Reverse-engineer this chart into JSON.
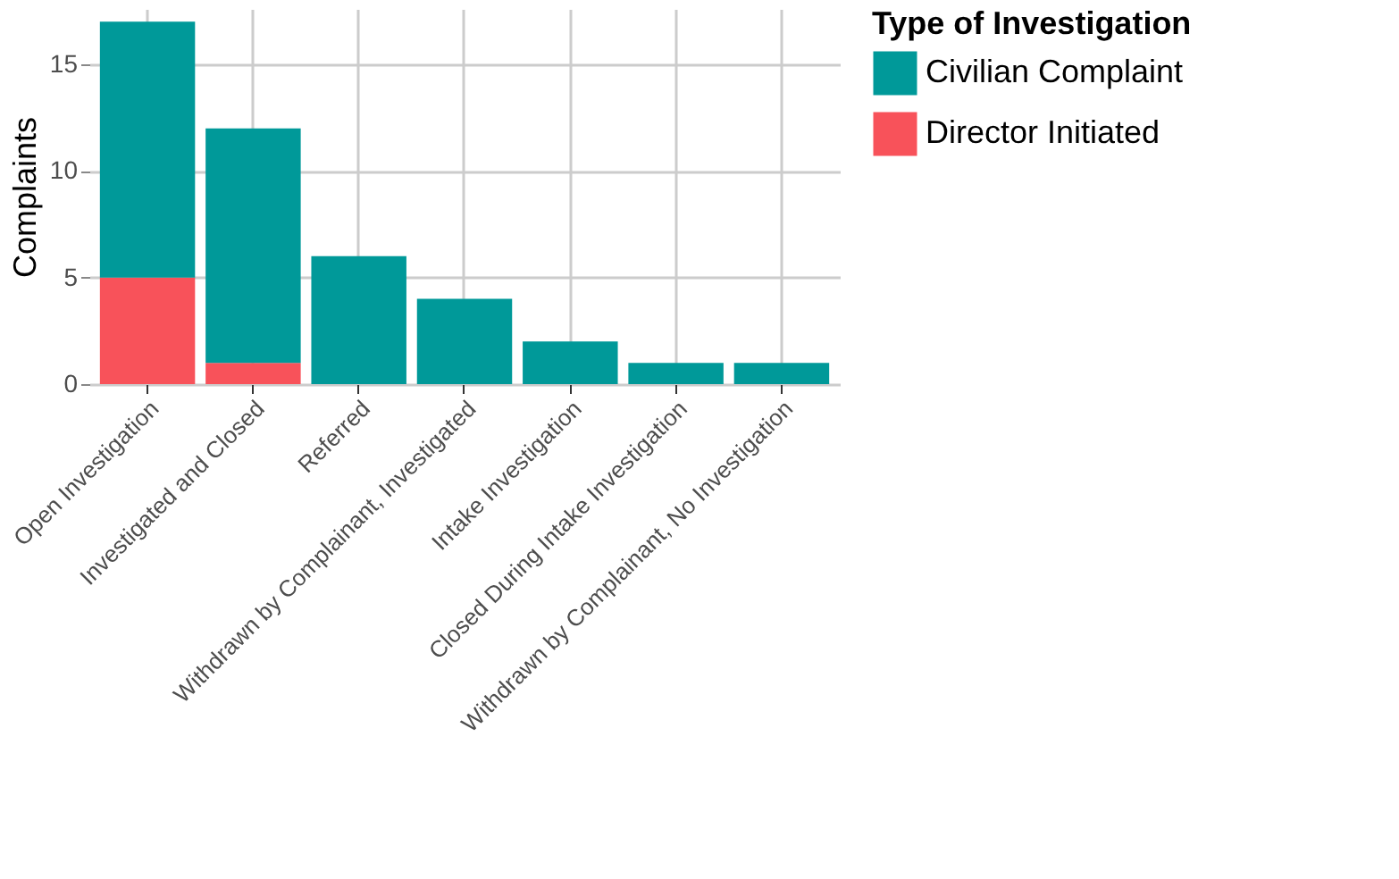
{
  "chart_data": {
    "type": "bar",
    "stacked": true,
    "ylabel": "Complaints",
    "legend_title": "Type of Investigation",
    "legend": "top right",
    "grid": true,
    "categories": [
      "Open Investigation",
      "Investigated and Closed",
      "Referred",
      "Withdrawn by Complainant, Investigated",
      "Intake Investigation",
      "Closed During Intake Investigation",
      "Withdrawn by Complainant, No Investigation"
    ],
    "series": [
      {
        "name": "Director Initiated",
        "color": "#f8525a",
        "values": [
          5,
          1,
          null,
          null,
          null,
          null,
          null
        ]
      },
      {
        "name": "Civilian Complaint",
        "color": "#009999",
        "values": [
          12,
          11,
          6,
          4,
          2,
          1,
          1
        ]
      }
    ],
    "ylim": [
      0,
      17.6
    ],
    "yticks": [
      0,
      5,
      10,
      15
    ]
  }
}
